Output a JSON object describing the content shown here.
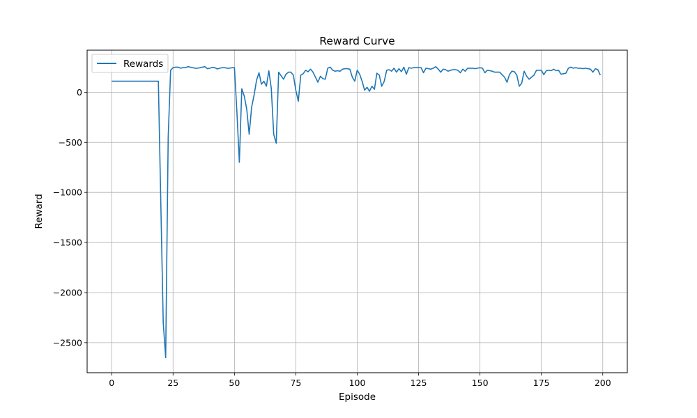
{
  "chart_data": {
    "type": "line",
    "title": "Reward Curve",
    "xlabel": "Episode",
    "ylabel": "Reward",
    "xlim": [
      -10,
      210
    ],
    "ylim": [
      -2800,
      420
    ],
    "grid": true,
    "legend_position": "top-left",
    "x_ticks": [
      0,
      25,
      50,
      75,
      100,
      125,
      150,
      175,
      200
    ],
    "x_tick_labels": [
      "0",
      "25",
      "50",
      "75",
      "100",
      "125",
      "150",
      "175",
      "200"
    ],
    "y_ticks": [
      -2500,
      -2000,
      -1500,
      -1000,
      -500,
      0
    ],
    "y_tick_labels": [
      "−2500",
      "−2000",
      "−1500",
      "−1000",
      "−500",
      "0"
    ],
    "series": [
      {
        "name": "Rewards",
        "color": "#1f77b4",
        "y": [
          110,
          110,
          110,
          110,
          110,
          110,
          110,
          110,
          110,
          110,
          110,
          110,
          110,
          110,
          110,
          110,
          110,
          110,
          110,
          110,
          -1100,
          -2300,
          -2650,
          -450,
          220,
          245,
          250,
          250,
          240,
          245,
          245,
          255,
          250,
          245,
          240,
          240,
          245,
          250,
          255,
          235,
          240,
          248,
          245,
          232,
          240,
          245,
          245,
          240,
          240,
          245,
          245,
          -200,
          -700,
          35,
          -40,
          -170,
          -420,
          -150,
          -30,
          120,
          195,
          80,
          110,
          60,
          215,
          40,
          -420,
          -510,
          200,
          165,
          130,
          180,
          200,
          200,
          170,
          20,
          -90,
          170,
          185,
          220,
          205,
          230,
          200,
          150,
          100,
          160,
          135,
          130,
          240,
          250,
          220,
          210,
          215,
          210,
          230,
          235,
          235,
          230,
          150,
          110,
          220,
          180,
          110,
          20,
          50,
          10,
          60,
          30,
          190,
          170,
          60,
          110,
          220,
          225,
          210,
          240,
          200,
          235,
          205,
          250,
          180,
          245,
          240,
          245,
          245,
          245,
          245,
          195,
          240,
          235,
          230,
          240,
          255,
          230,
          200,
          230,
          225,
          210,
          220,
          225,
          225,
          220,
          195,
          230,
          210,
          240,
          240,
          240,
          235,
          240,
          245,
          240,
          195,
          220,
          215,
          210,
          200,
          200,
          200,
          175,
          150,
          100,
          175,
          210,
          205,
          170,
          60,
          90,
          210,
          160,
          130,
          150,
          170,
          220,
          220,
          220,
          175,
          215,
          220,
          215,
          230,
          215,
          220,
          180,
          185,
          190,
          240,
          250,
          240,
          245,
          240,
          240,
          235,
          240,
          235,
          230,
          200,
          235,
          225,
          170
        ]
      }
    ]
  }
}
